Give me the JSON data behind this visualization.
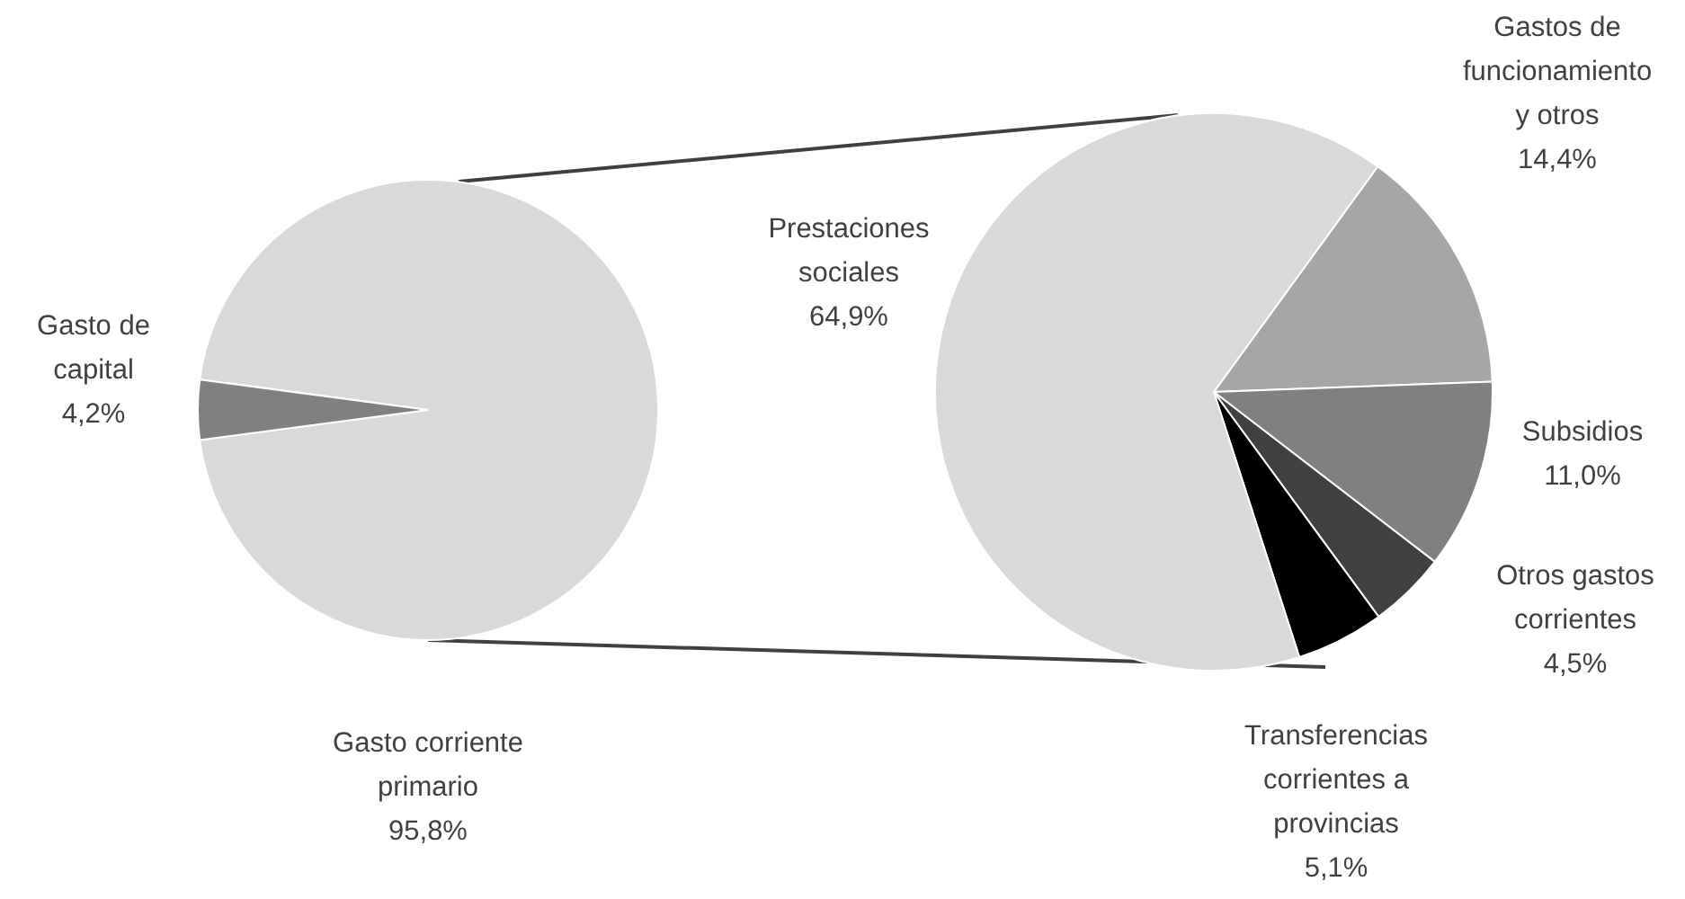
{
  "chart_data": [
    {
      "type": "pie",
      "categories": [
        "Gasto corriente primario",
        "Gasto de capital"
      ],
      "values": [
        95.8,
        4.2
      ],
      "colors": [
        "#d9d9d9",
        "#808080"
      ],
      "value_labels": [
        "95,8%",
        "4,2%"
      ]
    },
    {
      "type": "pie",
      "categories": [
        "Gastos de funcionamiento y otros",
        "Subsidios",
        "Otros gastos corrientes",
        "Transferencias corrientes a provincias",
        "Prestaciones sociales"
      ],
      "values": [
        14.4,
        11.0,
        4.5,
        5.1,
        64.9
      ],
      "colors": [
        "#a6a6a6",
        "#808080",
        "#404040",
        "#000000",
        "#d9d9d9"
      ],
      "value_labels": [
        "14,4%",
        "11,0%",
        "4,5%",
        "5,1%",
        "64,9%"
      ]
    }
  ]
}
